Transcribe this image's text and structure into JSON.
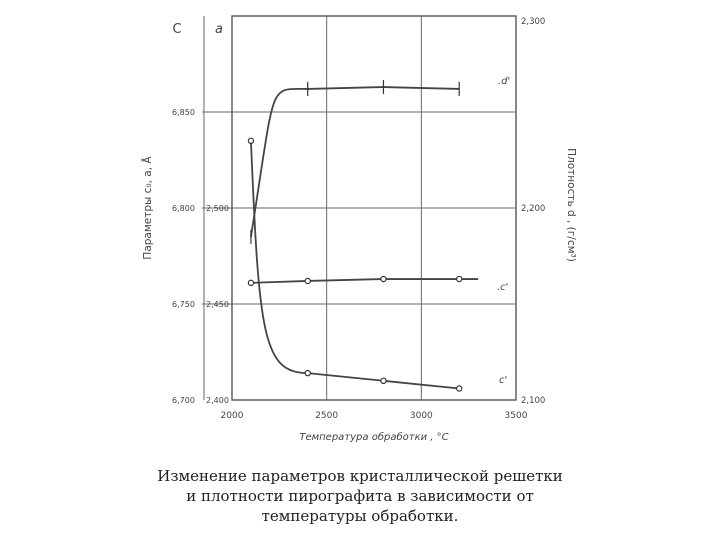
{
  "chart_data": {
    "type": "line",
    "xlabel": "Температура обработки ,  °С",
    "x_ticks": [
      2000,
      2500,
      3000,
      3500
    ],
    "xlim": [
      2000,
      3500
    ],
    "left_axis_c": {
      "label": "C",
      "ticks": [
        6.7,
        6.75,
        6.8,
        6.85
      ],
      "tick_labels": [
        "6,700",
        "6,750",
        "6,800",
        "6,850"
      ],
      "ylim": [
        6.7,
        6.9
      ]
    },
    "left_axis_a": {
      "label": "a",
      "ticks": [
        2.4,
        2.45,
        2.5
      ],
      "tick_labels": [
        "2,400",
        "2,450",
        "2,500"
      ],
      "ylim": [
        2.4,
        2.6
      ]
    },
    "left_axis_title": "Параметры  с₀, а, Å",
    "right_axis": {
      "title": "Плотность  d , (г/см³)",
      "ticks": [
        2.1,
        2.2,
        2.3
      ],
      "tick_labels": [
        "2,100",
        "2,200",
        "2,300"
      ],
      "ylim": [
        2.1,
        2.3
      ]
    },
    "grid": true,
    "series": [
      {
        "name": "d",
        "axis": "right",
        "x": [
          2100,
          2400,
          2800,
          3200
        ],
        "y": [
          2.185,
          2.262,
          2.263,
          2.262
        ],
        "marker": "errorbar"
      },
      {
        "name": "c",
        "axis": "left_c",
        "x": [
          2100,
          2400,
          2800,
          3200
        ],
        "y": [
          6.835,
          6.714,
          6.71,
          6.706
        ],
        "marker": "circle"
      },
      {
        "name": "a",
        "axis": "left_a",
        "x": [
          2100,
          2400,
          2800,
          3200
        ],
        "y": [
          2.461,
          2.462,
          2.463,
          2.463
        ],
        "marker": "circle"
      }
    ],
    "series_labels": {
      "d": ".d'",
      "c": ".c'",
      "a": ".c'",
      "c_curve": "c'"
    }
  },
  "caption": {
    "line1": "Изменение параметров кристаллической решетки",
    "line2": "и плотности пирографита в зависимости от",
    "line3": "температуры обработки."
  }
}
